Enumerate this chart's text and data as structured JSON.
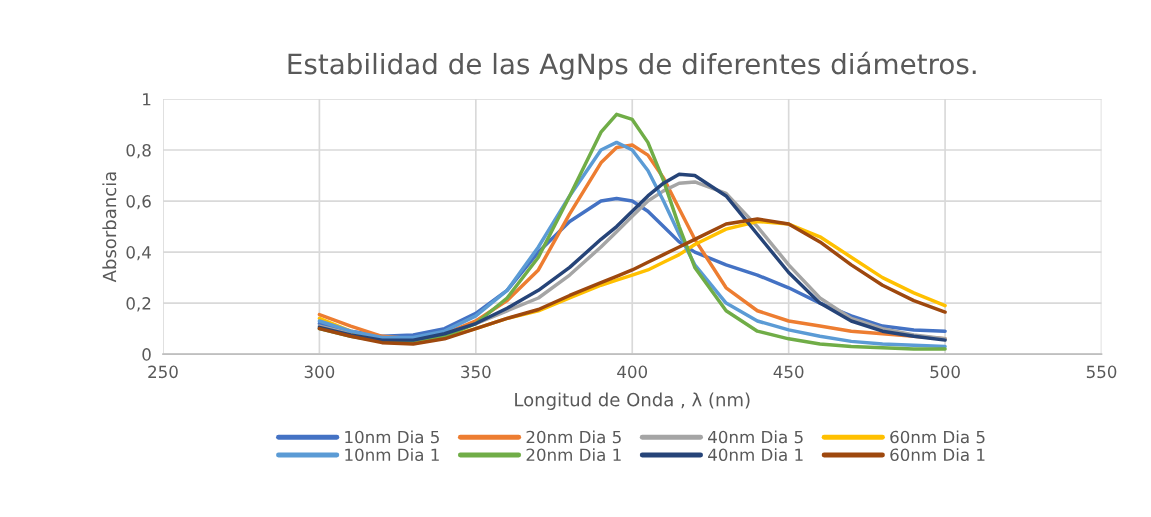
{
  "chart_data": {
    "type": "line",
    "title": "Estabilidad de las AgNps de diferentes diámetros.",
    "xlabel": "Longitud de Onda , λ (nm)",
    "ylabel": "Absorbancia",
    "x": [
      300,
      310,
      320,
      330,
      340,
      350,
      360,
      370,
      380,
      390,
      395,
      400,
      405,
      410,
      415,
      420,
      430,
      440,
      450,
      460,
      470,
      480,
      490,
      500
    ],
    "series": [
      {
        "name": "10nm Dia 5",
        "color": "#4472c4",
        "values": [
          0.12,
          0.09,
          0.07,
          0.075,
          0.1,
          0.16,
          0.25,
          0.4,
          0.52,
          0.6,
          0.61,
          0.6,
          0.56,
          0.5,
          0.44,
          0.4,
          0.35,
          0.31,
          0.26,
          0.2,
          0.15,
          0.11,
          0.095,
          0.09
        ]
      },
      {
        "name": "20nm Dia 5",
        "color": "#ed7d31",
        "values": [
          0.155,
          0.11,
          0.07,
          0.06,
          0.08,
          0.13,
          0.21,
          0.33,
          0.55,
          0.75,
          0.81,
          0.82,
          0.78,
          0.69,
          0.57,
          0.45,
          0.26,
          0.17,
          0.13,
          0.11,
          0.09,
          0.08,
          0.07,
          0.06
        ]
      },
      {
        "name": "40nm Dia 5",
        "color": "#a5a5a5",
        "values": [
          0.11,
          0.08,
          0.06,
          null,
          null,
          0.12,
          0.17,
          0.22,
          0.31,
          0.42,
          0.48,
          0.54,
          0.6,
          0.64,
          0.67,
          0.675,
          0.63,
          0.5,
          0.35,
          0.22,
          0.14,
          0.1,
          0.075,
          0.06
        ]
      },
      {
        "name": "60nm Dia 5",
        "color": "#ffc000",
        "values": [
          0.14,
          0.09,
          0.05,
          0.045,
          0.065,
          0.1,
          0.14,
          0.17,
          0.22,
          0.27,
          0.29,
          0.31,
          0.33,
          0.36,
          0.39,
          0.43,
          0.49,
          0.52,
          0.51,
          0.46,
          0.38,
          0.3,
          0.24,
          0.19
        ]
      },
      {
        "name": "10nm Dia 1",
        "color": "#5b9bd5",
        "values": [
          0.13,
          0.09,
          0.065,
          0.065,
          0.09,
          0.15,
          0.25,
          0.42,
          0.62,
          0.8,
          0.83,
          0.8,
          0.72,
          0.6,
          0.47,
          0.35,
          0.2,
          0.13,
          0.095,
          0.07,
          0.05,
          0.04,
          0.035,
          0.03
        ]
      },
      {
        "name": "20nm Dia 1",
        "color": "#70ad47",
        "values": [
          0.1,
          0.07,
          0.05,
          0.05,
          0.07,
          0.12,
          0.22,
          0.38,
          0.62,
          0.87,
          0.94,
          0.92,
          0.83,
          0.68,
          0.5,
          0.34,
          0.17,
          0.09,
          0.06,
          0.04,
          0.03,
          0.025,
          0.02,
          0.02
        ]
      },
      {
        "name": "40nm Dia 1",
        "color": "#264478",
        "values": [
          0.105,
          0.075,
          0.055,
          0.055,
          0.08,
          0.12,
          0.18,
          0.25,
          0.34,
          0.45,
          0.5,
          0.56,
          0.62,
          0.67,
          0.705,
          0.7,
          0.62,
          0.47,
          0.32,
          0.2,
          0.13,
          0.09,
          0.07,
          0.055
        ]
      },
      {
        "name": "60nm Dia 1",
        "color": "#9e480e",
        "values": [
          0.1,
          0.07,
          0.045,
          0.04,
          0.06,
          0.1,
          0.14,
          0.175,
          0.23,
          0.28,
          0.305,
          0.33,
          0.36,
          0.39,
          0.42,
          0.45,
          0.51,
          0.53,
          0.51,
          0.44,
          0.35,
          0.27,
          0.21,
          0.165
        ]
      }
    ],
    "xlim": [
      250,
      550
    ],
    "xticks": [
      250,
      300,
      350,
      400,
      450,
      500,
      550
    ],
    "ylim": [
      0,
      1
    ],
    "yticks": [
      0,
      {
        "value": 0.2,
        "label": "0,2"
      },
      {
        "value": 0.4,
        "label": "0,4"
      },
      {
        "value": 0.6,
        "label": "0,6"
      },
      {
        "value": 0.8,
        "label": "0,8"
      },
      1
    ],
    "grid": true,
    "legend": "bottom",
    "marker": "none",
    "line_style": "solid"
  }
}
